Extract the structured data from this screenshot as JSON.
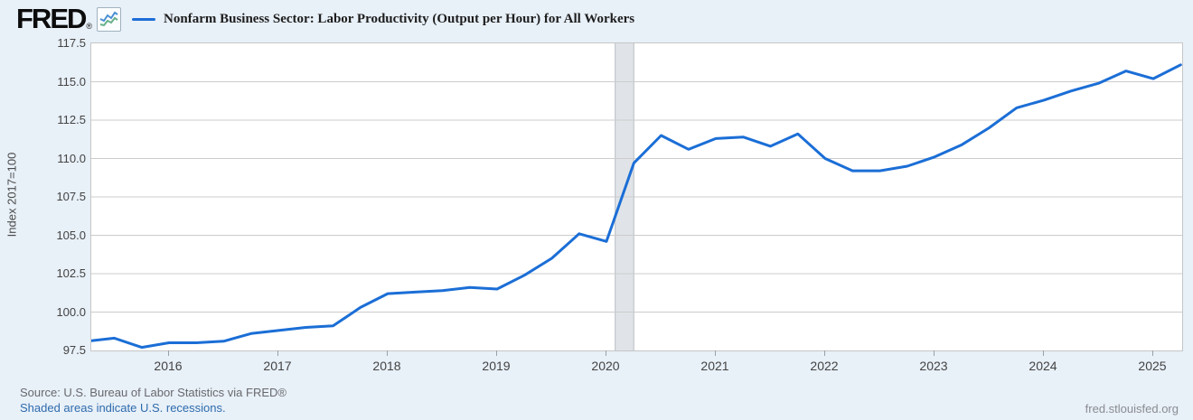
{
  "header": {
    "logo": "FRED",
    "registered": "®",
    "legend_label": "Nonfarm Business Sector: Labor Productivity (Output per Hour) for All Workers"
  },
  "y_axis": {
    "title": "Index 2017=100",
    "ticks": [
      117.5,
      115.0,
      112.5,
      110.0,
      107.5,
      105.0,
      102.5,
      100.0,
      97.5
    ]
  },
  "x_axis": {
    "ticks": [
      2016,
      2017,
      2018,
      2019,
      2020,
      2021,
      2022,
      2023,
      2024,
      2025
    ]
  },
  "footer": {
    "source": "Source: U.S. Bureau of Labor Statistics via FRED®",
    "recession_note": "Shaded areas indicate U.S. recessions.",
    "site": "fred.stlouisfed.org"
  },
  "colors": {
    "line_blue": "#1b6ed6",
    "page_bg": "#e8f0f8",
    "plot_bg": "#ffffff",
    "gridline": "#cccccc",
    "plot_border": "#c6c6c6",
    "recession_band": "#e0e4e8",
    "recession_edge": "#b7bdc4",
    "link_blue": "#2e6bac",
    "source_gray": "#68696d",
    "axis_text": "#434343",
    "logo_icon_blue": "#4a8fd3",
    "logo_icon_green": "#67b189"
  },
  "chart_data": {
    "type": "line",
    "title": "Nonfarm Business Sector: Labor Productivity (Output per Hour) for All Workers",
    "ylabel": "Index 2017=100",
    "ylim": [
      97.5,
      117.5
    ],
    "y_tick_step": 2.5,
    "x_range": [
      2015.25,
      2025.25
    ],
    "frequency": "quarterly",
    "grid": "horizontal",
    "legend_position": "top-left",
    "recession_shading": {
      "start": 2020.08,
      "end": 2020.25
    },
    "categories": [
      "2015-Q2",
      "2015-Q3",
      "2015-Q4",
      "2016-Q1",
      "2016-Q2",
      "2016-Q3",
      "2016-Q4",
      "2017-Q1",
      "2017-Q2",
      "2017-Q3",
      "2017-Q4",
      "2018-Q1",
      "2018-Q2",
      "2018-Q3",
      "2018-Q4",
      "2019-Q1",
      "2019-Q2",
      "2019-Q3",
      "2019-Q4",
      "2020-Q1",
      "2020-Q2",
      "2020-Q3",
      "2020-Q4",
      "2021-Q1",
      "2021-Q2",
      "2021-Q3",
      "2021-Q4",
      "2022-Q1",
      "2022-Q2",
      "2022-Q3",
      "2022-Q4",
      "2023-Q1",
      "2023-Q2",
      "2023-Q3",
      "2023-Q4",
      "2024-Q1",
      "2024-Q2",
      "2024-Q3",
      "2024-Q4",
      "2025-Q1",
      "2025-Q2"
    ],
    "values": [
      98.1,
      98.3,
      97.7,
      98.0,
      98.0,
      98.1,
      98.6,
      98.8,
      99.0,
      99.1,
      100.3,
      101.2,
      101.3,
      101.4,
      101.6,
      101.5,
      102.4,
      103.5,
      105.1,
      104.6,
      109.7,
      111.5,
      110.6,
      111.3,
      111.4,
      110.8,
      111.6,
      110.0,
      109.2,
      109.2,
      109.5,
      110.1,
      110.9,
      112.0,
      113.3,
      113.8,
      114.4,
      114.9,
      115.7,
      115.2,
      116.1
    ]
  }
}
